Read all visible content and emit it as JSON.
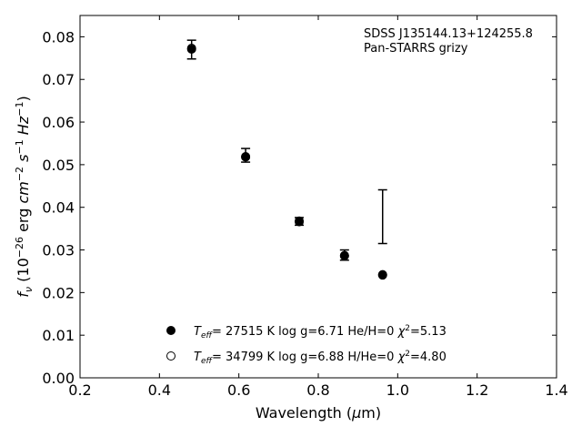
{
  "chart_data": {
    "type": "scatter",
    "xlabel": "Wavelength (μm)",
    "ylabel": "f_ν (10^-26 erg cm^-2 s^-1 Hz^-1)",
    "xlim": [
      0.2,
      1.4
    ],
    "ylim": [
      0.0,
      0.085
    ],
    "xticks": [
      0.2,
      0.4,
      0.6,
      0.8,
      1.0,
      1.2,
      1.4
    ],
    "yticks": [
      0.0,
      0.01,
      0.02,
      0.03,
      0.04,
      0.05,
      0.06,
      0.07,
      0.08
    ],
    "xtick_labels": [
      "0.2",
      "0.4",
      "0.6",
      "0.8",
      "1.0",
      "1.2",
      "1.4"
    ],
    "ytick_labels": [
      "0.00",
      "0.01",
      "0.02",
      "0.03",
      "0.04",
      "0.05",
      "0.06",
      "0.07",
      "0.08"
    ],
    "grid": false,
    "annotation": [
      "SDSS J135144.13+124255.8",
      "Pan-STARRS grizy"
    ],
    "observed": {
      "x": [
        0.481,
        0.617,
        0.752,
        0.866,
        0.962
      ],
      "y": [
        0.077,
        0.0522,
        0.0367,
        0.0288,
        null
      ],
      "yerr": [
        0.0022,
        0.0016,
        0.0009,
        0.0012,
        0.0063
      ],
      "err_center": [
        0.077,
        0.0522,
        0.0367,
        0.0288,
        0.0378
      ]
    },
    "series": [
      {
        "marker": "filled",
        "label": {
          "teff_sym": "T",
          "teff_sub": "eff",
          "rest": "= 27515 K  log g=6.71  He/H=0  ",
          "chi": "χ",
          "chi_exp": "2",
          "chi_val": "=5.13"
        },
        "x": [
          0.481,
          0.617,
          0.752,
          0.866,
          0.962
        ],
        "y": [
          0.0771,
          0.0518,
          0.0368,
          0.0287,
          0.0242
        ]
      },
      {
        "marker": "open",
        "label": {
          "teff_sym": "T",
          "teff_sub": "eff",
          "rest": "= 34799 K  log g=6.88  H/He=0  ",
          "chi": "χ",
          "chi_exp": "2",
          "chi_val": "=4.80"
        },
        "x": [
          0.481,
          0.617,
          0.752,
          0.866,
          0.962
        ],
        "y": [
          0.0773,
          0.0519,
          0.0366,
          0.0286,
          0.0241
        ]
      }
    ]
  }
}
